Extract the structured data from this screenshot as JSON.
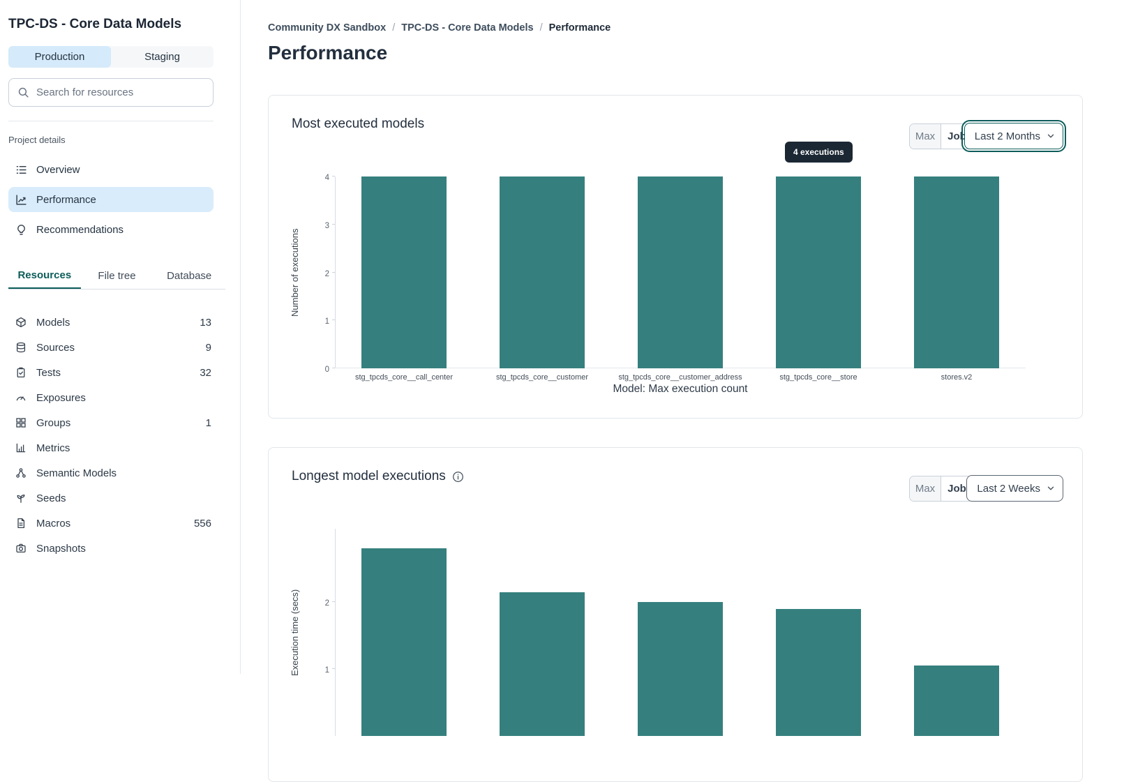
{
  "sidebar": {
    "title": "TPC-DS - Core Data Models",
    "env_tabs": [
      {
        "label": "Production",
        "active": true
      },
      {
        "label": "Staging",
        "active": false
      }
    ],
    "search_placeholder": "Search for resources",
    "section_label": "Project details",
    "nav": [
      {
        "label": "Overview",
        "icon": "list-icon",
        "active": false
      },
      {
        "label": "Performance",
        "icon": "trend-icon",
        "active": true
      },
      {
        "label": "Recommendations",
        "icon": "lightbulb-icon",
        "active": false
      }
    ],
    "resource_tabs": [
      {
        "label": "Resources",
        "active": true
      },
      {
        "label": "File tree",
        "active": false
      },
      {
        "label": "Database",
        "active": false
      }
    ],
    "resources": [
      {
        "label": "Models",
        "count": "13",
        "icon": "cube-icon"
      },
      {
        "label": "Sources",
        "count": "9",
        "icon": "database-icon"
      },
      {
        "label": "Tests",
        "count": "32",
        "icon": "clipboard-check-icon"
      },
      {
        "label": "Exposures",
        "count": "",
        "icon": "gauge-icon"
      },
      {
        "label": "Groups",
        "count": "1",
        "icon": "grid-icon"
      },
      {
        "label": "Metrics",
        "count": "",
        "icon": "bar-chart-icon"
      },
      {
        "label": "Semantic Models",
        "count": "",
        "icon": "network-icon"
      },
      {
        "label": "Seeds",
        "count": "",
        "icon": "seedling-icon"
      },
      {
        "label": "Macros",
        "count": "556",
        "icon": "file-icon"
      },
      {
        "label": "Snapshots",
        "count": "",
        "icon": "camera-icon"
      }
    ]
  },
  "breadcrumb": {
    "items": [
      "Community DX Sandbox",
      "TPC-DS - Core Data Models",
      "Performance"
    ],
    "separator": "/"
  },
  "page_title": "Performance",
  "cards": [
    {
      "title": "Most executed models",
      "max_label": "Max",
      "job_label": "Job",
      "range_value": "Last 2 Months",
      "tooltip": "4 executions"
    },
    {
      "title": "Longest model executions",
      "max_label": "Max",
      "job_label": "Job",
      "range_value": "Last 2 Weeks"
    }
  ],
  "colors": {
    "bar_teal": "#35807e",
    "accent_teal_dark": "#0c5c5a",
    "selected_light_blue": "#d9ecfb",
    "tooltip_bg": "#1b2733"
  },
  "chart_data": [
    {
      "type": "bar",
      "title": "Most executed models",
      "categories": [
        "stg_tpcds_core__call_center",
        "stg_tpcds_core__customer",
        "stg_tpcds_core__customer_address",
        "stg_tpcds_core__store",
        "stores.v2"
      ],
      "values": [
        4,
        4,
        4,
        4,
        4
      ],
      "xlabel": "Model: Max execution count",
      "ylabel": "Number of executions",
      "ylim": [
        0,
        4
      ],
      "yticks": [
        0,
        1,
        2,
        3,
        4
      ],
      "bar_color": "#35807e",
      "grid": false,
      "tooltip": {
        "text": "4 executions",
        "bar_index": 3
      }
    },
    {
      "type": "bar",
      "title": "Longest model executions",
      "categories": [],
      "values": [
        2.8,
        2.15,
        2.0,
        1.9,
        1.05
      ],
      "xlabel": "",
      "ylabel": "Execution time (secs)",
      "ylim": [
        0,
        3.1
      ],
      "yticks": [
        1,
        2
      ],
      "bar_color": "#35807e",
      "grid": false
    }
  ]
}
